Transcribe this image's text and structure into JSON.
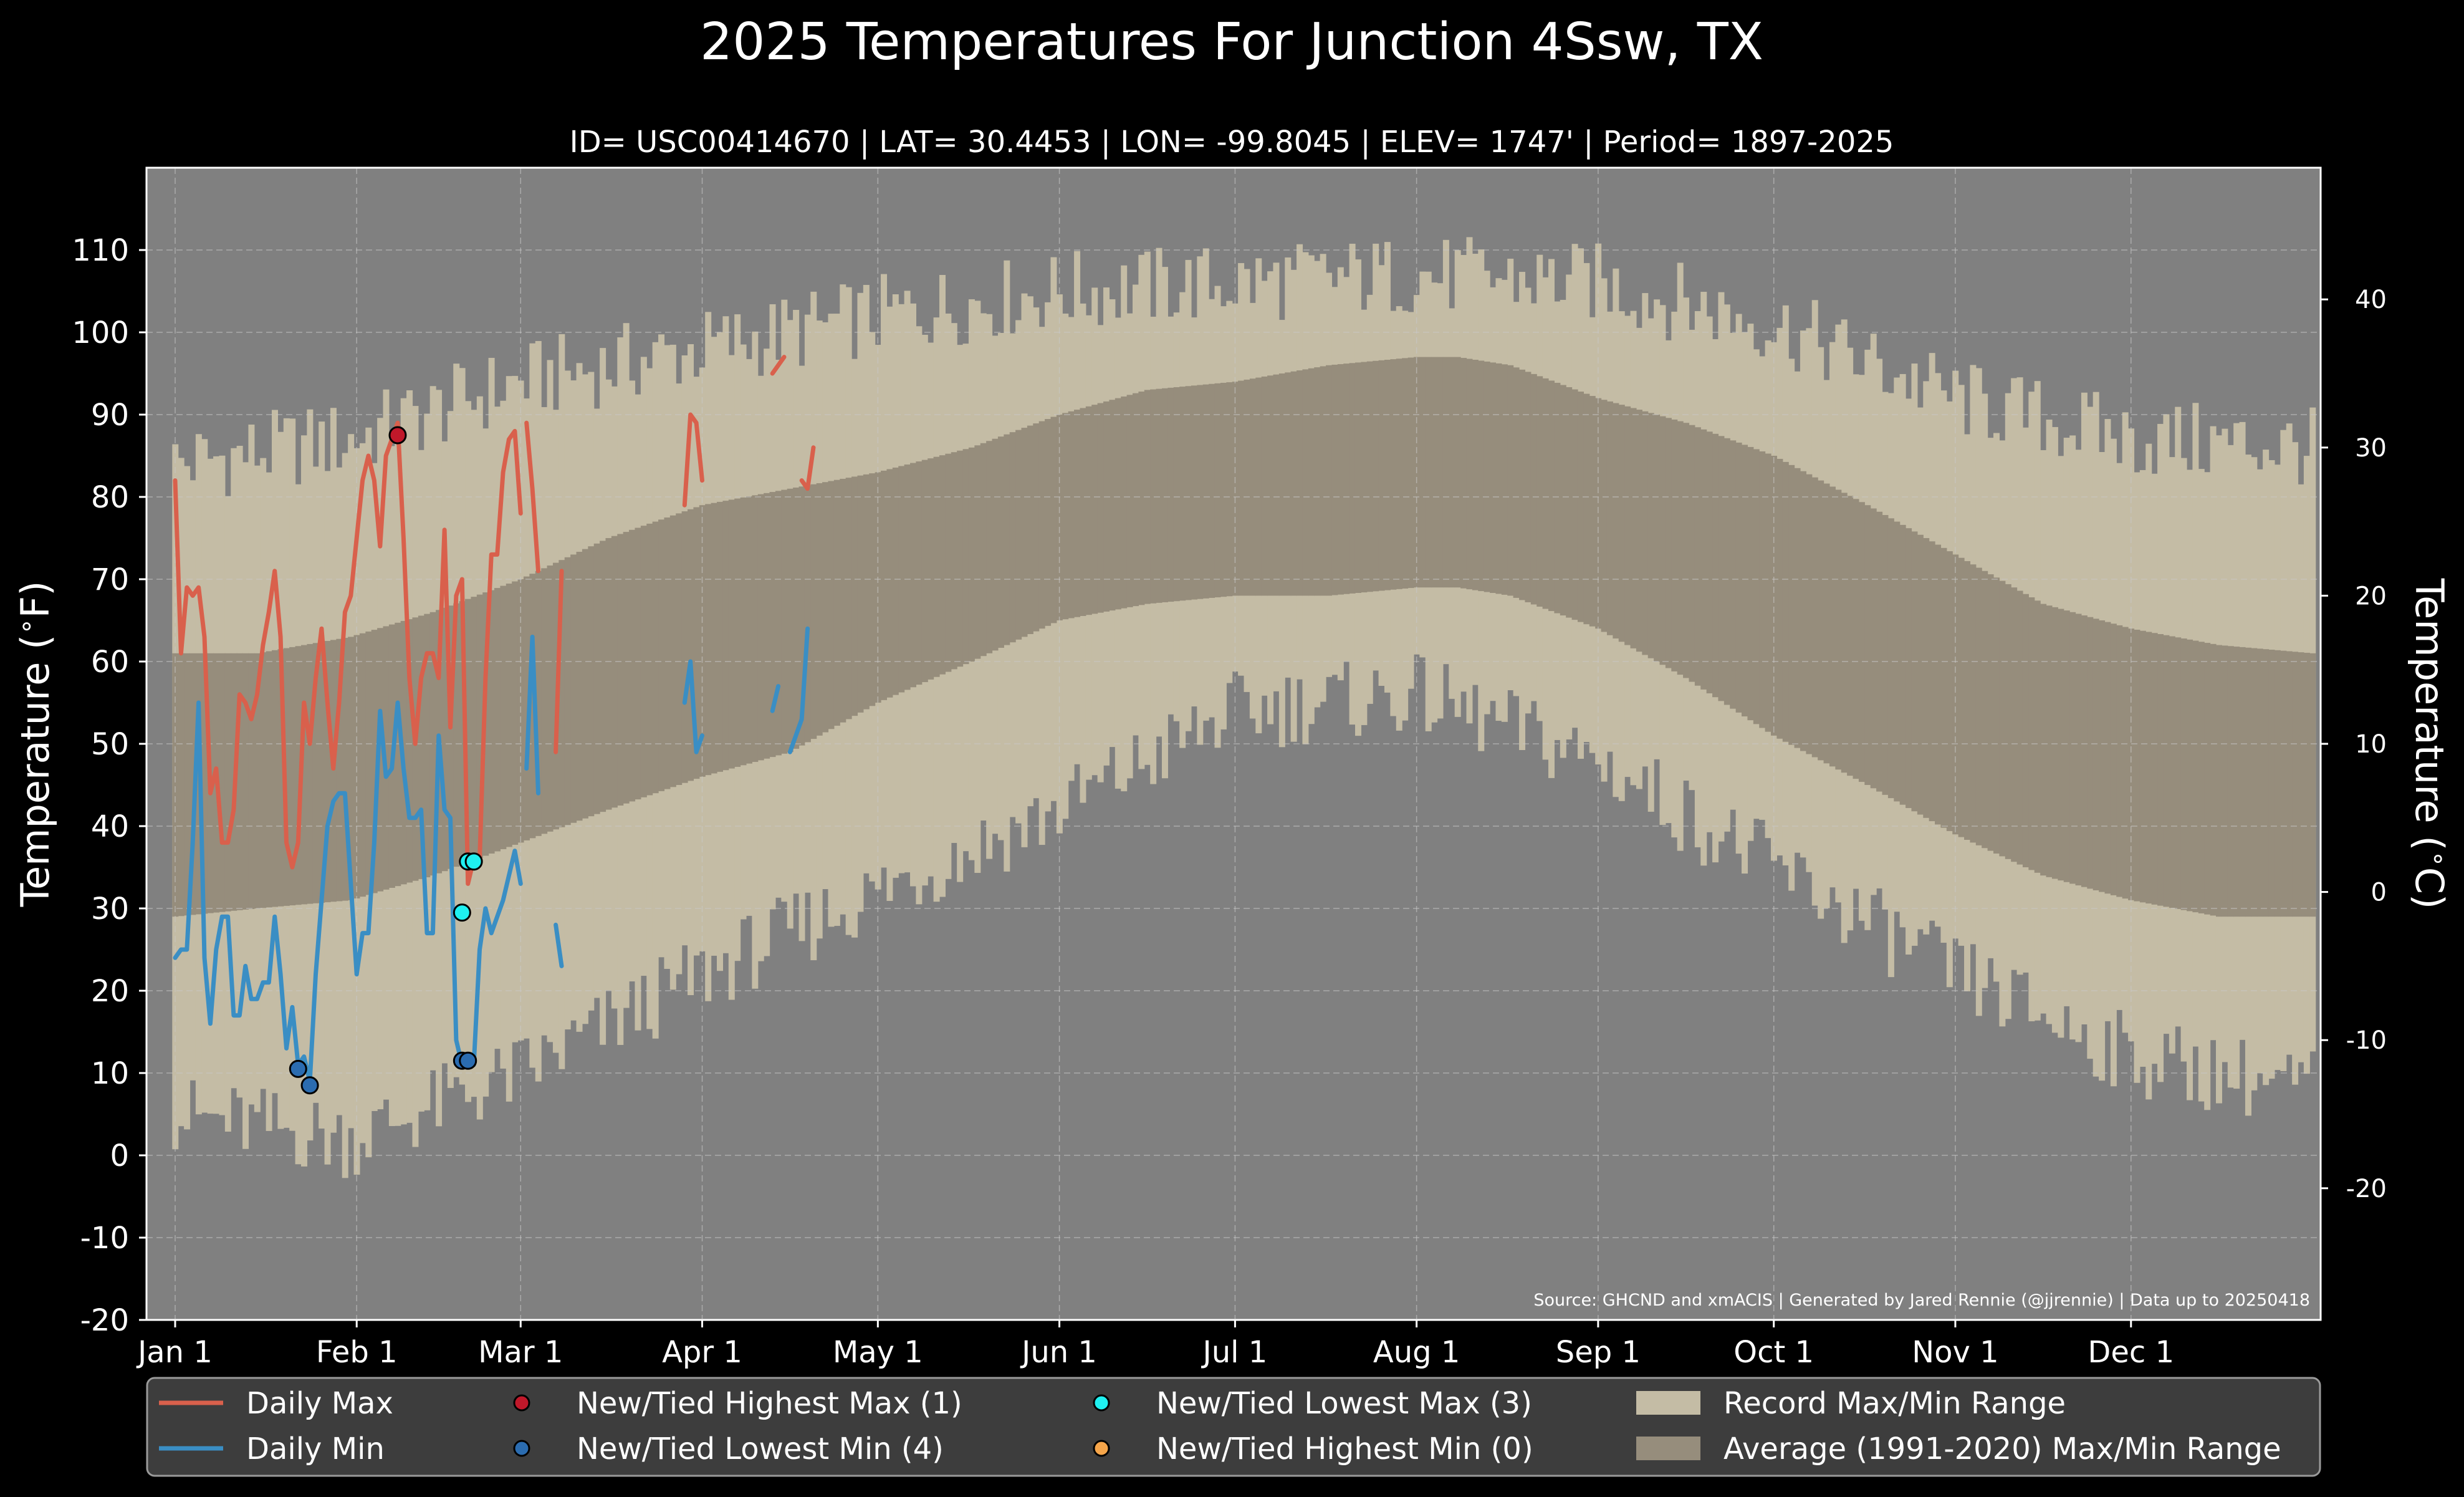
{
  "header": {
    "title": "2025 Temperatures For Junction 4Ssw, TX",
    "subtitle": "ID= USC00414670 | LAT= 30.4453 | LON= -99.8045 | ELEV= 1747' | Period= 1897-2025"
  },
  "source_note": "Source: GHCND and xmACIS | Generated by Jared Rennie (@jjrennie) | Data up to 20250418",
  "colors": {
    "background": "#000000",
    "plot_background": "#808080",
    "record_range": "#c4bca5",
    "normal_range": "#968d7c",
    "daily_max": "#d9604c",
    "daily_min": "#3a8ec4",
    "highest_max_marker": "#c0182a",
    "lowest_min_marker": "#2b6cb0",
    "lowest_max_marker": "#1ff0f0",
    "highest_min_marker": "#f5a54a",
    "legend_background": "#3d3d3d"
  },
  "chart_data": {
    "type": "line",
    "title": "2025 Temperatures For Junction 4Ssw, TX",
    "ylabel": "Temperature ($^\\circ$F)",
    "ylabel_right": "Temperature ($^\\circ$C)",
    "ylim": [
      -20,
      120
    ],
    "xlim_day_of_year": [
      0,
      366
    ],
    "grid": true,
    "legend_position": "bottom",
    "x_ticks": [
      {
        "label": "Jan 1",
        "day": 1
      },
      {
        "label": "Feb 1",
        "day": 32
      },
      {
        "label": "Mar 1",
        "day": 60
      },
      {
        "label": "Apr 1",
        "day": 91
      },
      {
        "label": "May 1",
        "day": 121
      },
      {
        "label": "Jun 1",
        "day": 152
      },
      {
        "label": "Jul 1",
        "day": 182
      },
      {
        "label": "Aug 1",
        "day": 213
      },
      {
        "label": "Sep 1",
        "day": 244
      },
      {
        "label": "Oct 1",
        "day": 274
      },
      {
        "label": "Nov 1",
        "day": 305
      },
      {
        "label": "Dec 1",
        "day": 335
      }
    ],
    "y_ticks_f": [
      -20,
      -10,
      0,
      10,
      20,
      30,
      40,
      50,
      60,
      70,
      80,
      90,
      100,
      110
    ],
    "y_ticks_c": [
      -20,
      -10,
      0,
      10,
      20,
      30,
      40
    ],
    "record_max_profile": [
      [
        1,
        84
      ],
      [
        31,
        87
      ],
      [
        60,
        94
      ],
      [
        91,
        98
      ],
      [
        121,
        102
      ],
      [
        152,
        105
      ],
      [
        182,
        106
      ],
      [
        213,
        107
      ],
      [
        244,
        106
      ],
      [
        274,
        101
      ],
      [
        305,
        92
      ],
      [
        335,
        87
      ],
      [
        366,
        86
      ]
    ],
    "record_min_profile": [
      [
        1,
        5
      ],
      [
        31,
        2
      ],
      [
        60,
        10
      ],
      [
        91,
        22
      ],
      [
        121,
        32
      ],
      [
        152,
        42
      ],
      [
        182,
        54
      ],
      [
        213,
        56
      ],
      [
        244,
        48
      ],
      [
        274,
        35
      ],
      [
        305,
        22
      ],
      [
        335,
        12
      ],
      [
        366,
        8
      ]
    ],
    "normal_max_profile": [
      [
        1,
        61
      ],
      [
        15,
        61
      ],
      [
        31,
        63
      ],
      [
        45,
        66
      ],
      [
        60,
        70
      ],
      [
        75,
        75
      ],
      [
        91,
        79
      ],
      [
        106,
        81
      ],
      [
        121,
        83
      ],
      [
        137,
        86
      ],
      [
        152,
        90
      ],
      [
        167,
        93
      ],
      [
        182,
        94
      ],
      [
        198,
        96
      ],
      [
        213,
        97
      ],
      [
        220,
        97
      ],
      [
        229,
        96
      ],
      [
        244,
        92
      ],
      [
        259,
        89
      ],
      [
        274,
        85
      ],
      [
        290,
        79
      ],
      [
        305,
        73
      ],
      [
        320,
        67
      ],
      [
        335,
        64
      ],
      [
        350,
        62
      ],
      [
        366,
        61
      ]
    ],
    "normal_min_profile": [
      [
        1,
        29
      ],
      [
        15,
        30
      ],
      [
        31,
        31
      ],
      [
        45,
        34
      ],
      [
        60,
        38
      ],
      [
        75,
        42
      ],
      [
        91,
        46
      ],
      [
        106,
        49
      ],
      [
        121,
        55
      ],
      [
        137,
        60
      ],
      [
        152,
        65
      ],
      [
        167,
        67
      ],
      [
        182,
        68
      ],
      [
        198,
        68
      ],
      [
        213,
        69
      ],
      [
        220,
        69
      ],
      [
        229,
        68
      ],
      [
        244,
        64
      ],
      [
        259,
        58
      ],
      [
        274,
        51
      ],
      [
        290,
        45
      ],
      [
        305,
        39
      ],
      [
        320,
        34
      ],
      [
        335,
        31
      ],
      [
        350,
        29
      ],
      [
        366,
        29
      ]
    ],
    "series": [
      {
        "name": "Daily Max",
        "segments": [
          [
            [
              1,
              82
            ],
            [
              2,
              61
            ],
            [
              3,
              69
            ],
            [
              4,
              68
            ],
            [
              5,
              69
            ],
            [
              6,
              63
            ],
            [
              7,
              44
            ],
            [
              8,
              47
            ],
            [
              9,
              38
            ],
            [
              10,
              38
            ],
            [
              11,
              42
            ],
            [
              12,
              56
            ],
            [
              13,
              55
            ],
            [
              14,
              53
            ],
            [
              15,
              56
            ],
            [
              16,
              62
            ],
            [
              17,
              66
            ],
            [
              18,
              71
            ],
            [
              19,
              63
            ],
            [
              20,
              38
            ],
            [
              21,
              35
            ],
            [
              22,
              38
            ],
            [
              23,
              55
            ],
            [
              24,
              50
            ],
            [
              25,
              58
            ],
            [
              26,
              64
            ],
            [
              27,
              55
            ],
            [
              28,
              47
            ],
            [
              29,
              55
            ],
            [
              30,
              66
            ],
            [
              31,
              68
            ],
            [
              32,
              75
            ],
            [
              33,
              82
            ],
            [
              34,
              85
            ],
            [
              35,
              82
            ],
            [
              36,
              74
            ],
            [
              37,
              85
            ],
            [
              38,
              87
            ],
            [
              39,
              89
            ],
            [
              40,
              75
            ],
            [
              41,
              58
            ],
            [
              42,
              50
            ],
            [
              43,
              58
            ],
            [
              44,
              61
            ],
            [
              45,
              61
            ],
            [
              46,
              58
            ],
            [
              47,
              76
            ],
            [
              48,
              52
            ],
            [
              49,
              68
            ],
            [
              50,
              70
            ],
            [
              51,
              33
            ],
            [
              52,
              36
            ],
            [
              53,
              36
            ],
            [
              54,
              58
            ],
            [
              55,
              73
            ],
            [
              56,
              73
            ],
            [
              57,
              83
            ],
            [
              58,
              87
            ],
            [
              59,
              88
            ],
            [
              60,
              78
            ]
          ],
          [
            [
              61,
              89
            ],
            [
              62,
              81
            ],
            [
              63,
              71
            ]
          ],
          [
            [
              66,
              49
            ],
            [
              67,
              71
            ]
          ],
          [
            [
              88,
              79
            ],
            [
              89,
              90
            ],
            [
              90,
              89
            ],
            [
              91,
              82
            ]
          ],
          [
            [
              103,
              95
            ],
            [
              104,
              96
            ],
            [
              105,
              97
            ]
          ],
          [
            [
              108,
              82
            ],
            [
              109,
              81
            ],
            [
              110,
              86
            ]
          ]
        ]
      },
      {
        "name": "Daily Min",
        "segments": [
          [
            [
              1,
              24
            ],
            [
              2,
              25
            ],
            [
              3,
              25
            ],
            [
              4,
              38
            ],
            [
              5,
              55
            ],
            [
              6,
              24
            ],
            [
              7,
              16
            ],
            [
              8,
              25
            ],
            [
              9,
              29
            ],
            [
              10,
              29
            ],
            [
              11,
              17
            ],
            [
              12,
              17
            ],
            [
              13,
              23
            ],
            [
              14,
              19
            ],
            [
              15,
              19
            ],
            [
              16,
              21
            ],
            [
              17,
              21
            ],
            [
              18,
              29
            ],
            [
              19,
              22
            ],
            [
              20,
              13
            ],
            [
              21,
              18
            ],
            [
              22,
              11
            ],
            [
              23,
              12
            ],
            [
              24,
              9
            ],
            [
              25,
              22
            ],
            [
              26,
              31
            ],
            [
              27,
              40
            ],
            [
              28,
              43
            ],
            [
              29,
              44
            ],
            [
              30,
              44
            ],
            [
              31,
              33
            ],
            [
              32,
              22
            ],
            [
              33,
              27
            ],
            [
              34,
              27
            ],
            [
              35,
              38
            ],
            [
              36,
              54
            ],
            [
              37,
              46
            ],
            [
              38,
              47
            ],
            [
              39,
              55
            ],
            [
              40,
              47
            ],
            [
              41,
              41
            ],
            [
              42,
              41
            ],
            [
              43,
              42
            ],
            [
              44,
              27
            ],
            [
              45,
              27
            ],
            [
              46,
              51
            ],
            [
              47,
              42
            ],
            [
              48,
              41
            ],
            [
              49,
              14
            ],
            [
              50,
              11
            ],
            [
              51,
              11
            ],
            [
              52,
              11
            ],
            [
              53,
              25
            ],
            [
              54,
              30
            ],
            [
              55,
              27
            ],
            [
              56,
              29
            ],
            [
              57,
              31
            ],
            [
              58,
              34
            ],
            [
              59,
              37
            ],
            [
              60,
              33
            ]
          ],
          [
            [
              61,
              47
            ],
            [
              62,
              63
            ],
            [
              63,
              44
            ]
          ],
          [
            [
              66,
              28
            ],
            [
              67,
              23
            ]
          ],
          [
            [
              88,
              55
            ],
            [
              89,
              60
            ],
            [
              90,
              49
            ],
            [
              91,
              51
            ]
          ],
          [
            [
              103,
              54
            ],
            [
              104,
              57
            ]
          ],
          [
            [
              106,
              49
            ],
            [
              108,
              53
            ],
            [
              109,
              64
            ]
          ]
        ]
      }
    ],
    "markers": [
      {
        "name": "New/Tied Highest Max (1)",
        "color": "#c0182a",
        "points": [
          [
            39,
            87.5
          ]
        ]
      },
      {
        "name": "New/Tied Lowest Min (4)",
        "color": "#2b6cb0",
        "points": [
          [
            22,
            10.5
          ],
          [
            24,
            8.5
          ],
          [
            50,
            11.5
          ],
          [
            51,
            11.5
          ]
        ]
      },
      {
        "name": "New/Tied Lowest Max (3)",
        "color": "#1ff0f0",
        "points": [
          [
            50,
            29.5
          ],
          [
            51,
            35.7
          ],
          [
            52,
            35.7
          ]
        ]
      },
      {
        "name": "New/Tied Highest Min (0)",
        "color": "#f5a54a",
        "points": []
      }
    ],
    "legend": [
      {
        "label": "Daily Max",
        "kind": "line",
        "color": "#d9604c"
      },
      {
        "label": "Daily Min",
        "kind": "line",
        "color": "#3a8ec4"
      },
      {
        "label": "New/Tied Highest Max (1)",
        "kind": "dot",
        "color": "#c0182a"
      },
      {
        "label": "New/Tied Lowest Min (4)",
        "kind": "dot",
        "color": "#2b6cb0"
      },
      {
        "label": "New/Tied Lowest Max (3)",
        "kind": "dot",
        "color": "#1ff0f0"
      },
      {
        "label": "New/Tied Highest Min (0)",
        "kind": "dot",
        "color": "#f5a54a"
      },
      {
        "label": "Record Max/Min Range",
        "kind": "patch",
        "color": "#c4bca5"
      },
      {
        "label": "Average (1991-2020) Max/Min Range",
        "kind": "patch",
        "color": "#968d7c"
      }
    ]
  }
}
